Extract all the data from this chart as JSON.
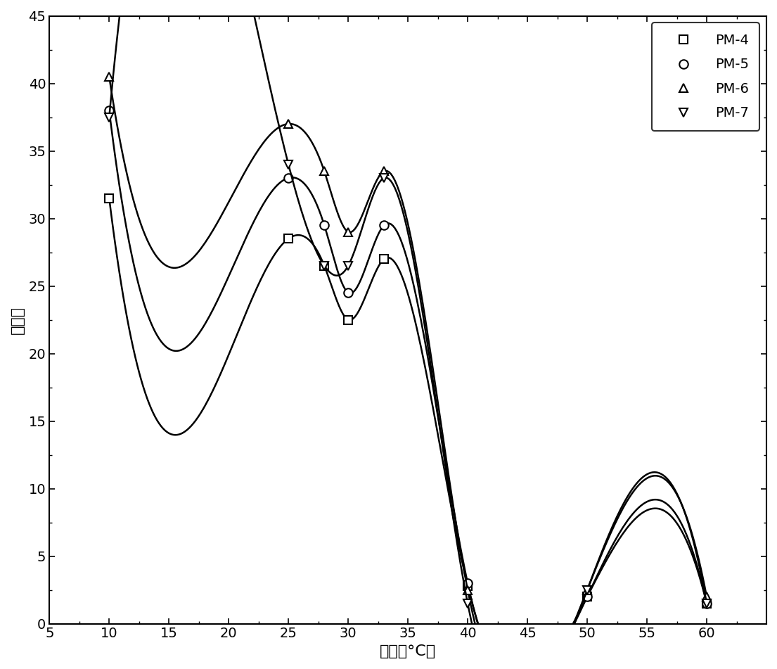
{
  "series": {
    "PM-4": {
      "x": [
        10,
        25,
        28,
        30,
        33,
        40,
        50,
        60
      ],
      "y": [
        31.5,
        28.5,
        26.5,
        22.5,
        27.0,
        2.8,
        2.0,
        1.5
      ],
      "marker": "s",
      "label": "PM-4"
    },
    "PM-5": {
      "x": [
        10,
        25,
        28,
        30,
        33,
        40,
        50,
        60
      ],
      "y": [
        38.0,
        33.0,
        29.5,
        24.5,
        29.5,
        3.0,
        2.0,
        1.5
      ],
      "marker": "o",
      "label": "PM-5"
    },
    "PM-6": {
      "x": [
        10,
        25,
        28,
        30,
        33,
        40,
        50,
        60
      ],
      "y": [
        40.5,
        37.0,
        33.5,
        29.0,
        33.5,
        2.5,
        2.5,
        2.0
      ],
      "marker": "^",
      "label": "PM-6"
    },
    "PM-7": {
      "x": [
        10,
        25,
        28,
        30,
        33,
        40,
        50,
        60
      ],
      "y": [
        37.5,
        34.0,
        26.5,
        26.5,
        33.0,
        1.5,
        2.5,
        1.5
      ],
      "marker": "v",
      "label": "PM-7"
    }
  },
  "xlim": [
    5,
    65
  ],
  "ylim": [
    0,
    45
  ],
  "xticks": [
    5,
    10,
    15,
    20,
    25,
    30,
    35,
    40,
    45,
    50,
    55,
    60,
    65
  ],
  "yticks": [
    0,
    5,
    10,
    15,
    20,
    25,
    30,
    35,
    40,
    45
  ],
  "xlabel": "温度（°C）",
  "ylabel": "溶胀率",
  "line_color": "#000000",
  "background_color": "#ffffff",
  "legend_loc": "upper right",
  "marker_size": 9,
  "line_width": 1.8,
  "font_size": 16,
  "tick_font_size": 14,
  "legend_font_size": 14
}
